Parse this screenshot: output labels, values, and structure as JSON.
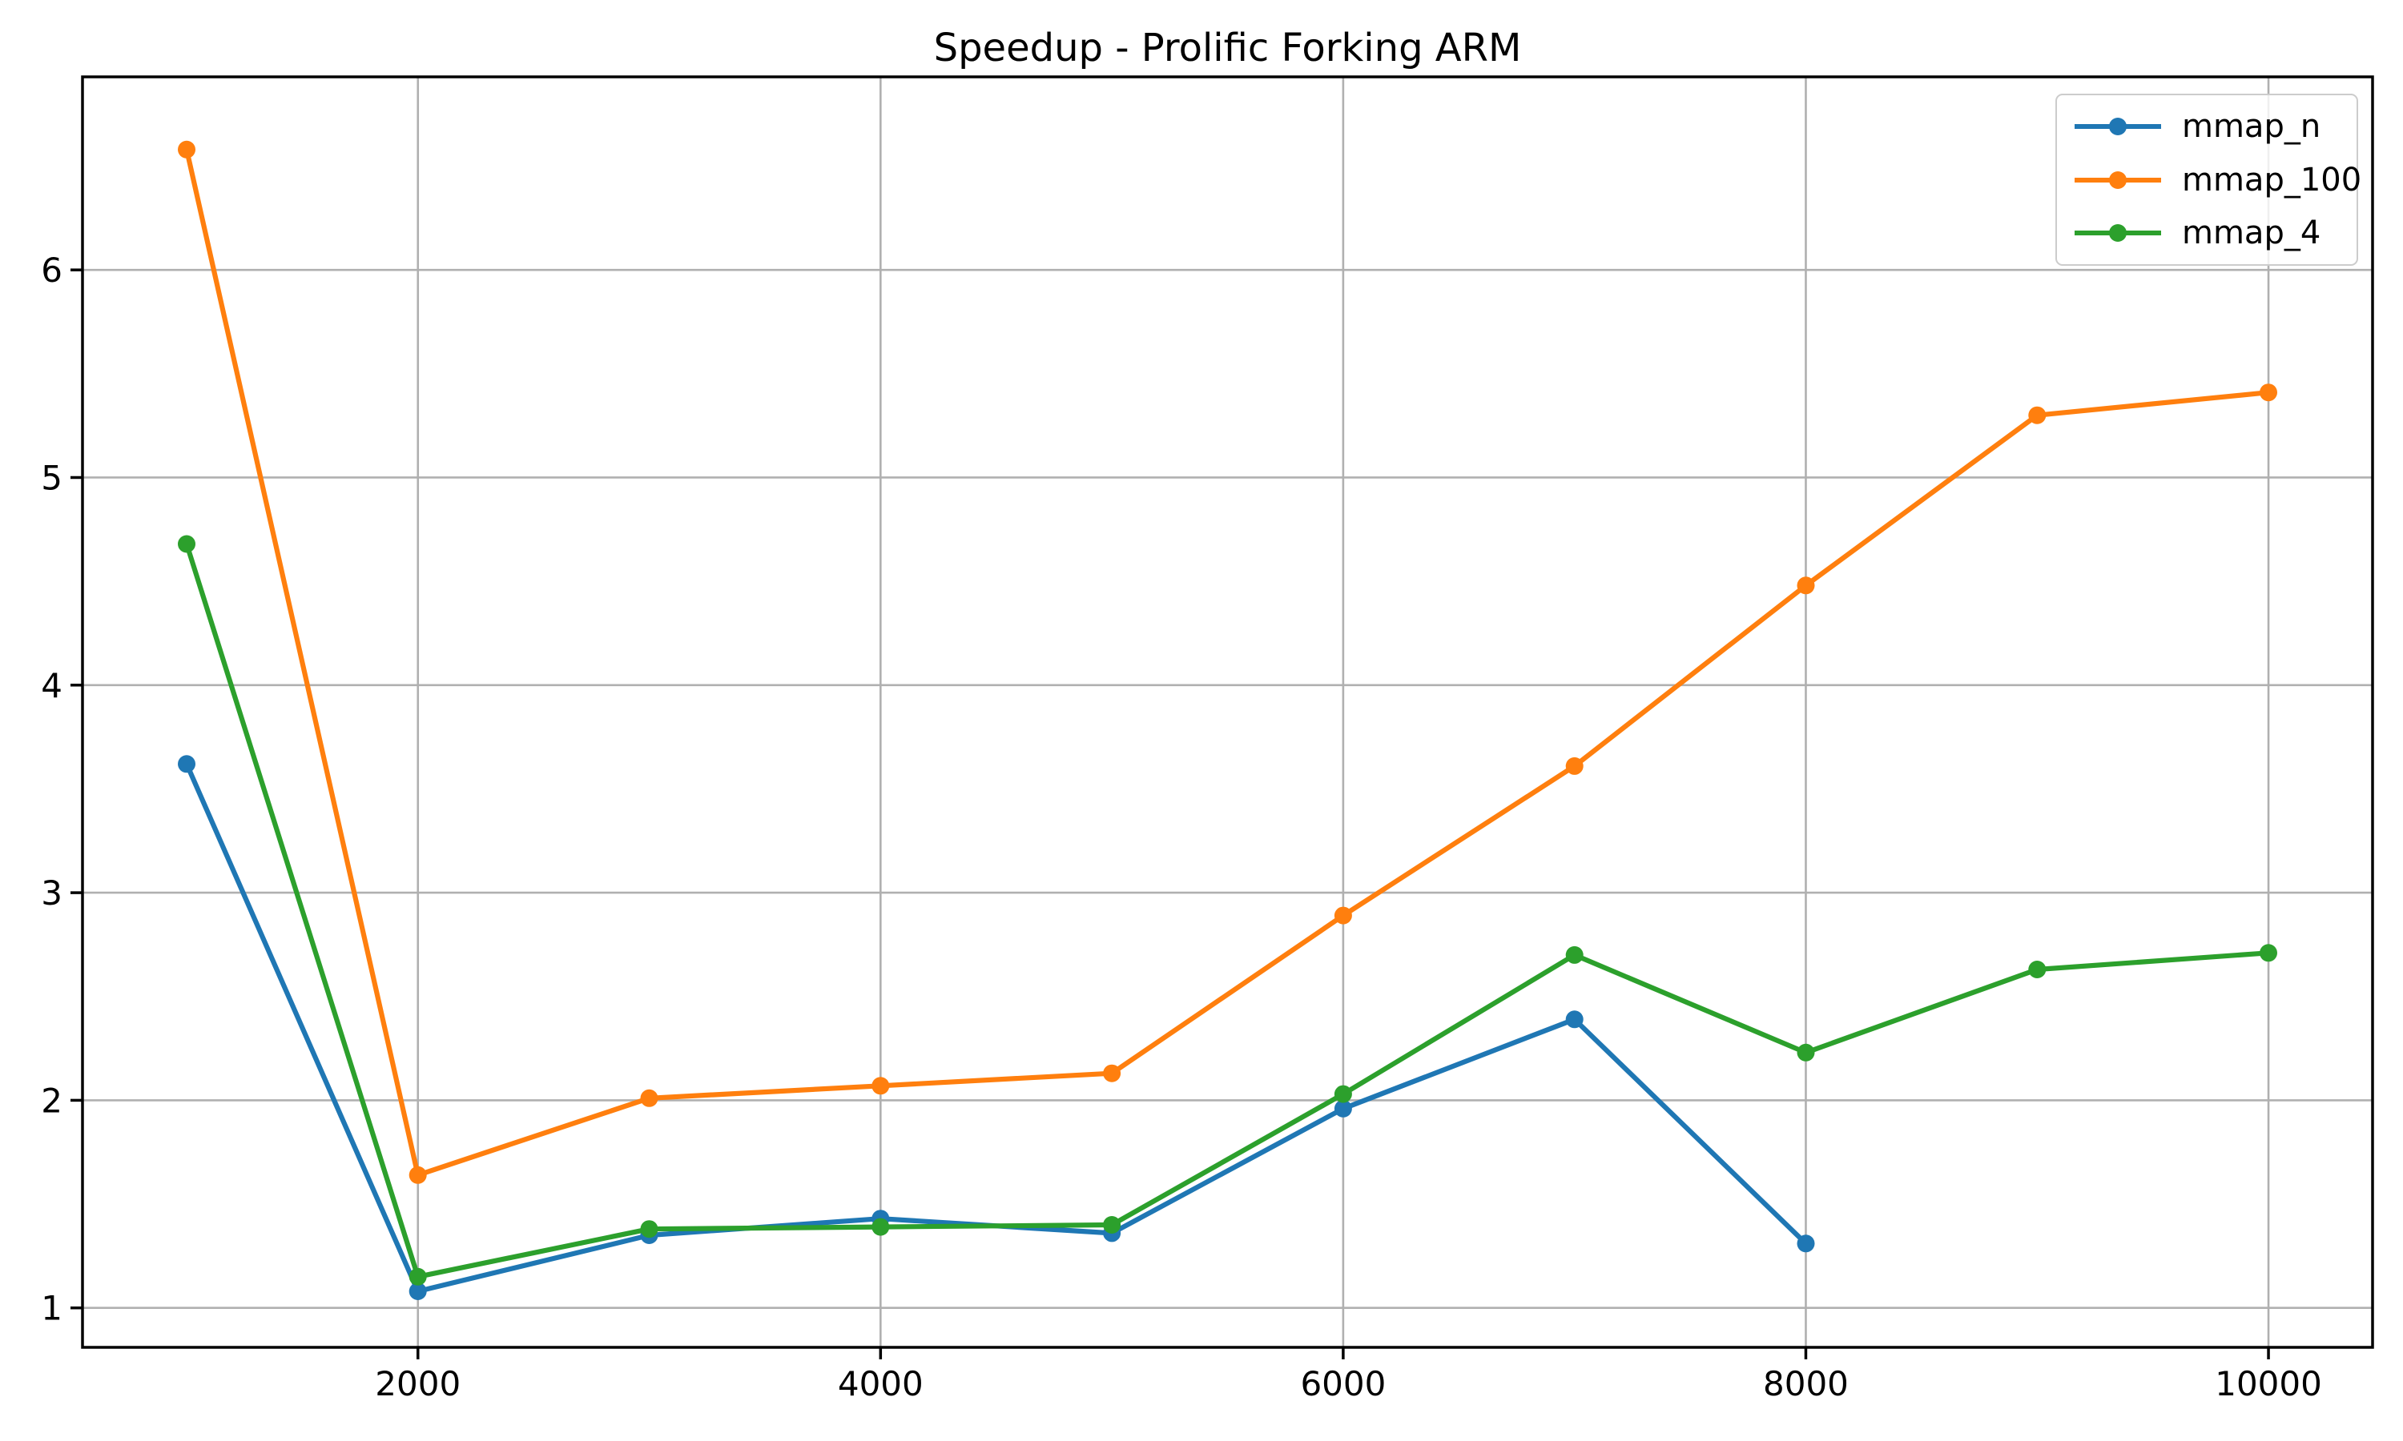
{
  "figure": {
    "background": "#ffffff"
  },
  "chart_data": {
    "type": "line",
    "title": "Speedup - Prolific Forking ARM",
    "xlabel": "",
    "ylabel": "",
    "xlim": [
      550,
      10450
    ],
    "ylim": [
      0.81,
      6.93
    ],
    "xticks": [
      2000,
      4000,
      6000,
      8000,
      10000
    ],
    "yticks": [
      1,
      2,
      3,
      4,
      5,
      6
    ],
    "grid": true,
    "grid_color": "#b0b0b0",
    "axis_color": "#000000",
    "tick_label_color": "#000000",
    "legend": {
      "position": "upper right",
      "border_color": "#cccccc",
      "background": "rgba(255,255,255,0.8)"
    },
    "series": [
      {
        "name": "mmap_n",
        "color": "#1f77b4",
        "marker": "circle",
        "x": [
          1000,
          2000,
          3000,
          4000,
          5000,
          6000,
          7000,
          8000
        ],
        "y": [
          3.62,
          1.08,
          1.35,
          1.43,
          1.36,
          1.96,
          2.39,
          1.31
        ]
      },
      {
        "name": "mmap_100",
        "color": "#ff7f0e",
        "marker": "circle",
        "x": [
          1000,
          2000,
          3000,
          4000,
          5000,
          6000,
          7000,
          8000,
          9000,
          10000
        ],
        "y": [
          6.58,
          1.64,
          2.01,
          2.07,
          2.13,
          2.89,
          3.61,
          4.48,
          5.3,
          5.41
        ]
      },
      {
        "name": "mmap_4",
        "color": "#2ca02c",
        "marker": "circle",
        "x": [
          1000,
          2000,
          3000,
          4000,
          5000,
          6000,
          7000,
          8000,
          9000,
          10000
        ],
        "y": [
          4.68,
          1.15,
          1.38,
          1.39,
          1.4,
          2.03,
          2.7,
          2.23,
          2.63,
          2.71
        ]
      }
    ]
  }
}
